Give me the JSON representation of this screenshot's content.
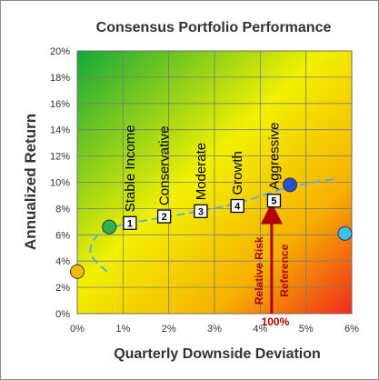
{
  "chart_data": {
    "type": "scatter",
    "title": "Consensus Portfolio Performance",
    "xlabel": "Quarterly Downside Deviation",
    "ylabel": "Annualized Return",
    "xlim": [
      0,
      6
    ],
    "ylim": [
      0,
      20
    ],
    "x_ticks": [
      "0%",
      "1%",
      "2%",
      "3%",
      "4%",
      "5%",
      "6%"
    ],
    "y_ticks": [
      "0%",
      "2%",
      "4%",
      "6%",
      "8%",
      "10%",
      "12%",
      "14%",
      "16%",
      "18%",
      "20%"
    ],
    "grid": true,
    "background": "gradient green (top-left) to yellow to red (bottom-right)",
    "reference_points": [
      {
        "x": 0.0,
        "y": 3.2,
        "color": "#f5b800"
      },
      {
        "x": 0.7,
        "y": 6.6,
        "color": "#2db34a"
      },
      {
        "x": 4.65,
        "y": 9.8,
        "color": "#2a4fd0"
      },
      {
        "x": 5.85,
        "y": 6.1,
        "color": "#3cc0ea"
      }
    ],
    "portfolios": [
      {
        "number": "1",
        "label": "Stable Income",
        "x": 1.15,
        "y": 6.9
      },
      {
        "number": "2",
        "label": "Conservative",
        "x": 1.9,
        "y": 7.4
      },
      {
        "number": "3",
        "label": "Moderate",
        "x": 2.7,
        "y": 7.8
      },
      {
        "number": "4",
        "label": "Growth",
        "x": 3.5,
        "y": 8.2
      },
      {
        "number": "5",
        "label": "Aggressive",
        "x": 4.3,
        "y": 8.6
      }
    ],
    "frontier_curve": [
      {
        "x": 0.65,
        "y": 3.2
      },
      {
        "x": 0.3,
        "y": 4.5
      },
      {
        "x": 0.4,
        "y": 5.8
      },
      {
        "x": 0.8,
        "y": 6.6
      },
      {
        "x": 1.5,
        "y": 7.1
      },
      {
        "x": 2.5,
        "y": 7.7
      },
      {
        "x": 3.5,
        "y": 8.4
      },
      {
        "x": 4.6,
        "y": 9.6
      },
      {
        "x": 5.7,
        "y": 10.3
      }
    ],
    "annotation": {
      "text_line1": "Relative Risk",
      "text_line2": "Reference",
      "value": "100%",
      "x": 4.25,
      "y_from": 0,
      "y_to": 8.2,
      "color": "#b00000"
    }
  }
}
